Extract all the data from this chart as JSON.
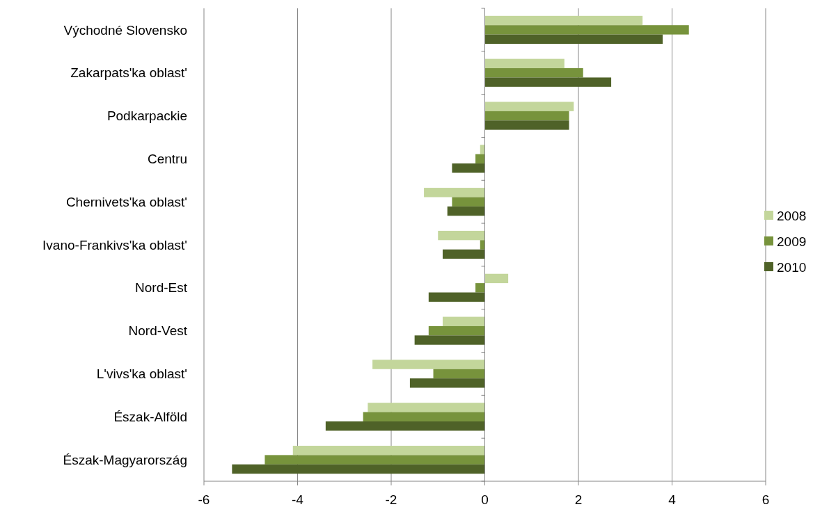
{
  "chart_data": {
    "type": "bar",
    "orientation": "horizontal",
    "categories": [
      "Východné Slovensko",
      "Zakarpats'ka oblast'",
      "Podkarpackie",
      "Centru",
      "Chernivets'ka oblast'",
      "Ivano-Frankivs'ka oblast'",
      "Nord-Est",
      "Nord-Vest",
      "L'vivs'ka oblast'",
      "Észak-Alföld",
      "Észak-Magyarország"
    ],
    "series": [
      {
        "name": "2008",
        "color": "#c3d69b",
        "values": [
          3.37,
          1.7,
          1.9,
          -0.1,
          -1.3,
          -1.0,
          0.5,
          -0.9,
          -2.4,
          -2.5,
          -4.1
        ]
      },
      {
        "name": "2009",
        "color": "#77933c",
        "values": [
          4.36,
          2.1,
          1.8,
          -0.2,
          -0.7,
          -0.1,
          -0.2,
          -1.2,
          -1.1,
          -2.6,
          -4.7
        ]
      },
      {
        "name": "2010",
        "color": "#4f6228",
        "values": [
          3.8,
          2.7,
          1.8,
          -0.7,
          -0.8,
          -0.9,
          -1.2,
          -1.5,
          -1.6,
          -3.4,
          -5.4
        ]
      }
    ],
    "xlim": [
      -6,
      6
    ],
    "xticks": [
      -6,
      -4,
      -2,
      0,
      2,
      4,
      6
    ],
    "grid": "x",
    "legend": "right"
  }
}
